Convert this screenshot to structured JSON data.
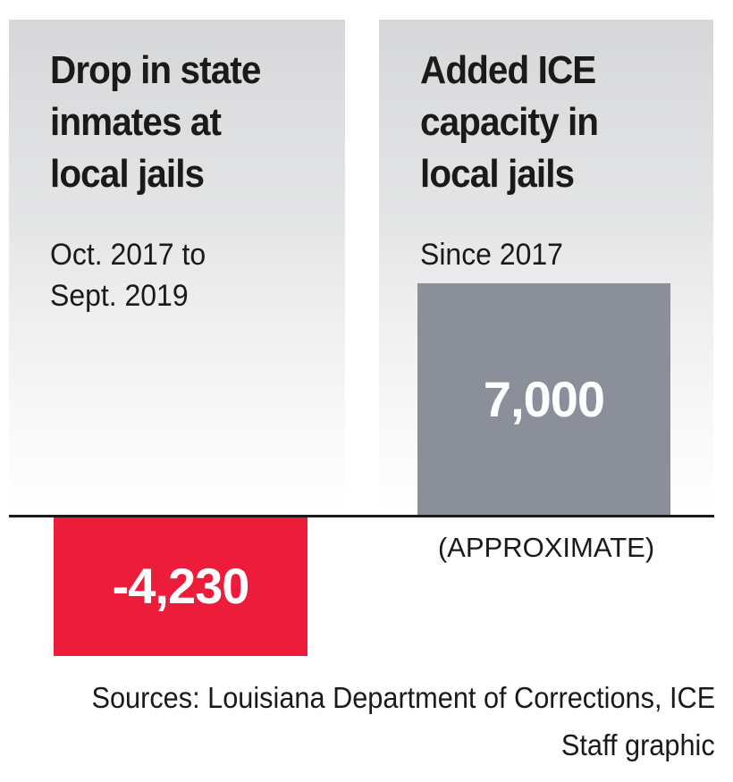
{
  "chart_data": {
    "type": "bar",
    "categories": [
      "Drop in state inmates at local jails",
      "Added ICE capacity in local jails"
    ],
    "values": [
      -4230,
      7000
    ],
    "value_labels": [
      "-4,230",
      "7,000"
    ],
    "colors": [
      "#ee1c3b",
      "#8a8f99"
    ],
    "ylim": [
      -4230,
      7000
    ],
    "panels": [
      {
        "title_lines": [
          "Drop in state",
          "inmates at",
          "local jails"
        ],
        "subtitle_lines": [
          "Oct. 2017 to",
          "Sept. 2019"
        ]
      },
      {
        "title_lines": [
          "Added ICE",
          "capacity in",
          "local jails"
        ],
        "subtitle_lines": [
          "Since 2017"
        ],
        "note": "(APPROXIMATE)"
      }
    ]
  },
  "footer": {
    "sources": "Sources: Louisiana Department of Corrections, ICE",
    "credit": "Staff graphic"
  }
}
